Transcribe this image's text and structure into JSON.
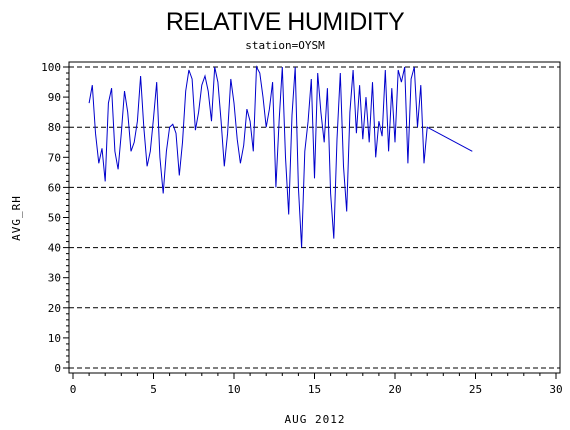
{
  "chart_data": {
    "type": "line",
    "title": "RELATIVE HUMIDITY",
    "subtitle": "station=OYSM",
    "xlabel": "AUG 2012",
    "ylabel": "AVG_RH",
    "xlim": [
      0,
      30
    ],
    "ylim": [
      0,
      100
    ],
    "x_ticks": [
      0,
      5,
      10,
      15,
      20,
      25,
      30
    ],
    "y_ticks": [
      0,
      10,
      20,
      30,
      40,
      50,
      60,
      70,
      80,
      90,
      100
    ],
    "gridlines_y": [
      0,
      20,
      40,
      60,
      80,
      100
    ],
    "grid": "dashed horizontal",
    "legend": "none",
    "line_color": "#0000cc",
    "series": [
      {
        "x": [
          1.0,
          1.2,
          1.4,
          1.6,
          1.8,
          2.0,
          2.2,
          2.4,
          2.6,
          2.8,
          3.0,
          3.2,
          3.4,
          3.6,
          3.8,
          4.0,
          4.2,
          4.4,
          4.6,
          4.8,
          5.0,
          5.2,
          5.4,
          5.6,
          5.8,
          6.0,
          6.2,
          6.4,
          6.6,
          6.8,
          7.0,
          7.2,
          7.4,
          7.6,
          7.8,
          8.0,
          8.2,
          8.4,
          8.6,
          8.8,
          9.0,
          9.2,
          9.4,
          9.6,
          9.8,
          10.0,
          10.2,
          10.4,
          10.6,
          10.8,
          11.0,
          11.2,
          11.4,
          11.6,
          11.8,
          12.0,
          12.2,
          12.4,
          12.6,
          12.8,
          13.0,
          13.2,
          13.4,
          13.6,
          13.8,
          14.0,
          14.2,
          14.4,
          14.6,
          14.8,
          15.0,
          15.2,
          15.4,
          15.6,
          15.8,
          16.0,
          16.2,
          16.4,
          16.6,
          16.8,
          17.0,
          17.2,
          17.4,
          17.6,
          17.8,
          18.0,
          18.2,
          18.4,
          18.6,
          18.8,
          19.0,
          19.2,
          19.4,
          19.6,
          19.8,
          20.0,
          20.2,
          20.4,
          20.6,
          20.8,
          21.0,
          21.2,
          21.4,
          21.6,
          21.8,
          22.0,
          24.8
        ],
        "y": [
          88,
          94,
          78,
          68,
          73,
          62,
          88,
          93,
          72,
          66,
          78,
          92,
          85,
          72,
          75,
          82,
          97,
          80,
          67,
          72,
          83,
          95,
          70,
          58,
          72,
          80,
          81,
          78,
          64,
          75,
          92,
          99,
          96,
          79,
          85,
          94,
          97,
          92,
          82,
          100,
          95,
          82,
          67,
          78,
          96,
          88,
          76,
          68,
          74,
          86,
          82,
          72,
          100,
          98,
          90,
          80,
          86,
          95,
          60,
          82,
          100,
          70,
          51,
          84,
          100,
          60,
          40,
          72,
          82,
          96,
          63,
          98,
          85,
          75,
          93,
          58,
          43,
          76,
          98,
          67,
          52,
          85,
          99,
          78,
          94,
          76,
          90,
          75,
          95,
          70,
          82,
          77,
          99,
          72,
          93,
          75,
          99,
          95,
          100,
          68,
          96,
          100,
          80,
          94,
          68,
          80,
          72
        ]
      }
    ]
  }
}
